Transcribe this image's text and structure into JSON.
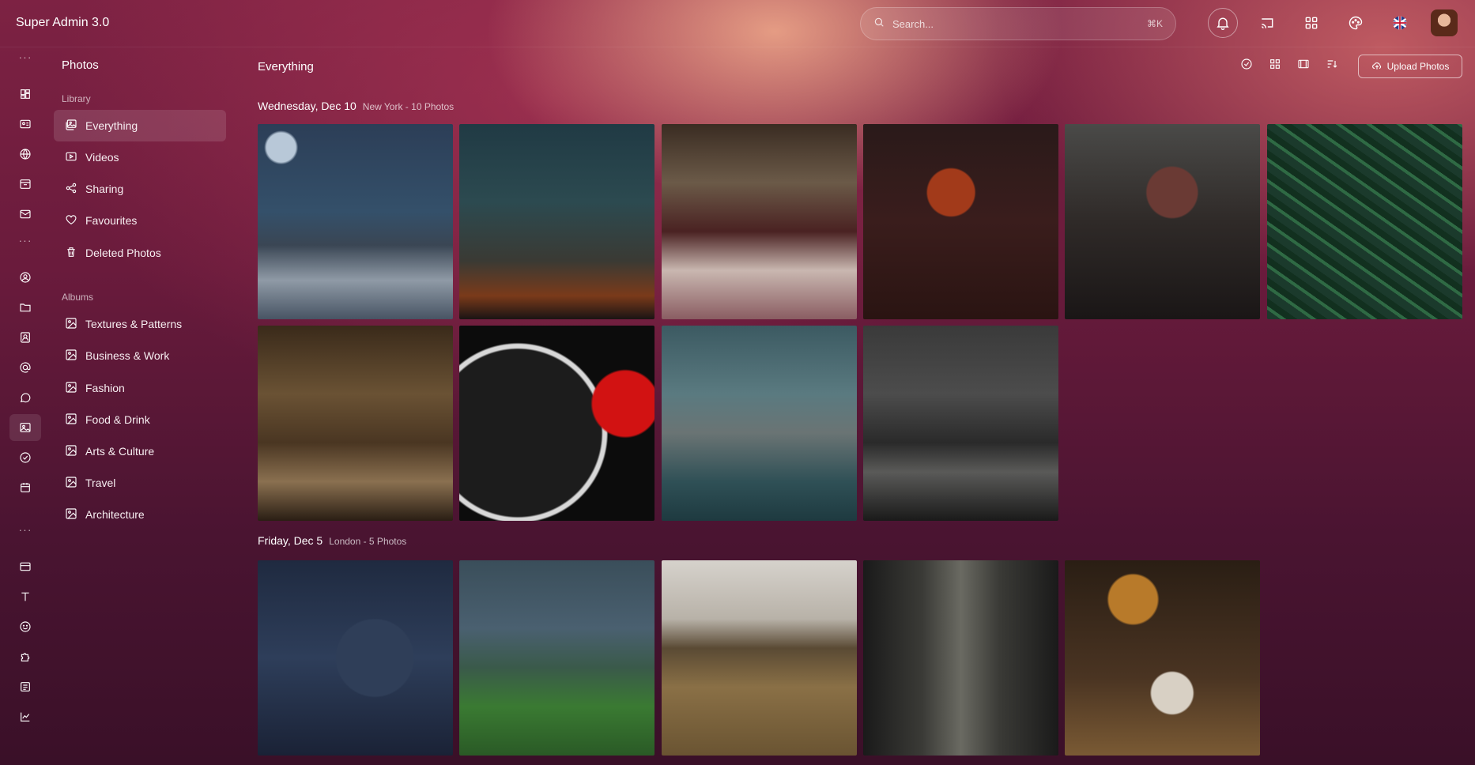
{
  "app": {
    "title": "Super Admin 3.0"
  },
  "search": {
    "placeholder": "Search...",
    "shortcut": "⌘K"
  },
  "top_icons": [
    "bell-icon",
    "cast-icon",
    "apps-grid-icon",
    "palette-icon",
    "uk-flag-icon",
    "user-avatar"
  ],
  "rail": {
    "groups": [
      [
        "dashboard-icon",
        "id-card-icon",
        "globe-icon",
        "archive-icon",
        "mail-icon"
      ],
      [
        "user-circle-icon",
        "folder-icon",
        "contacts-icon",
        "at-icon",
        "chat-icon",
        "photo-icon",
        "check-circle-icon",
        "calendar-icon"
      ],
      [
        "card-icon",
        "text-icon",
        "smile-icon",
        "puzzle-icon",
        "form-icon",
        "chart-line-icon"
      ]
    ],
    "active": "photo-icon"
  },
  "sidebar": {
    "title": "Photos",
    "library_label": "Library",
    "library": [
      {
        "label": "Everything",
        "icon": "photo-stack-icon",
        "active": true
      },
      {
        "label": "Videos",
        "icon": "video-icon"
      },
      {
        "label": "Sharing",
        "icon": "share-icon"
      },
      {
        "label": "Favourites",
        "icon": "heart-icon"
      },
      {
        "label": "Deleted Photos",
        "icon": "trash-icon"
      }
    ],
    "albums_label": "Albums",
    "albums": [
      {
        "label": "Textures & Patterns",
        "icon": "image-icon"
      },
      {
        "label": "Business & Work",
        "icon": "image-icon"
      },
      {
        "label": "Fashion",
        "icon": "image-icon"
      },
      {
        "label": "Food & Drink",
        "icon": "image-icon"
      },
      {
        "label": "Arts & Culture",
        "icon": "image-icon"
      },
      {
        "label": "Travel",
        "icon": "image-icon"
      },
      {
        "label": "Architecture",
        "icon": "image-icon"
      }
    ]
  },
  "main": {
    "title": "Everything",
    "toolbar_icons": [
      "select-all-icon",
      "grid-view-icon",
      "film-view-icon",
      "sort-icon"
    ],
    "upload_label": "Upload Photos",
    "groups": [
      {
        "date": "Wednesday, Dec 10",
        "meta": "New York - 10 Photos",
        "count": 10
      },
      {
        "date": "Friday, Dec 5",
        "meta": "London - 5 Photos",
        "count": 5
      }
    ]
  },
  "colors": {
    "accent_bg": "#6a1b3c",
    "glow": "#f4b08e"
  }
}
